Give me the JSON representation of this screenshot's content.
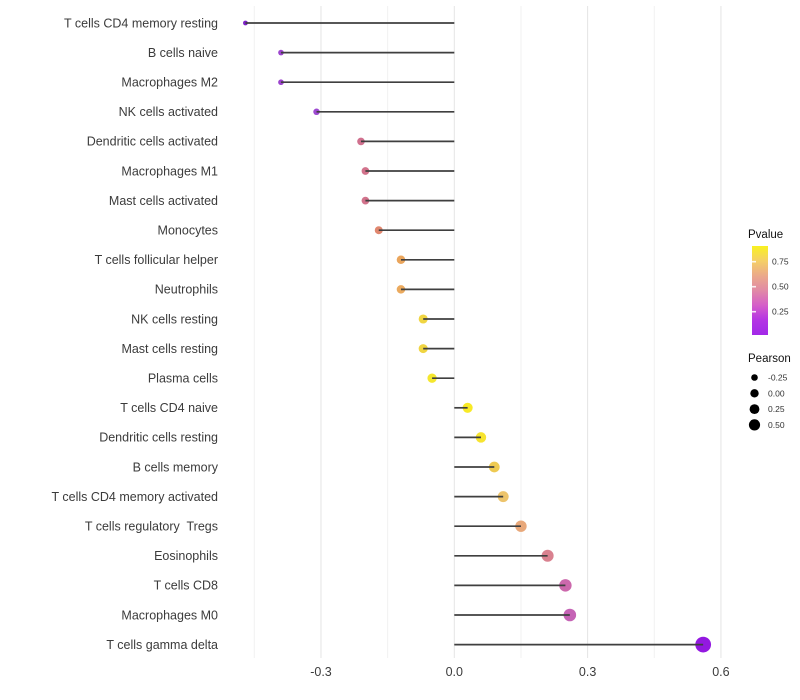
{
  "chart_data": {
    "type": "scatter",
    "subtype": "horizontal-lollipop",
    "title": "",
    "xlabel": "",
    "ylabel": "",
    "xlim": [
      -0.49,
      0.66
    ],
    "grid": "vertical-only",
    "x_major_ticks": [
      -0.3,
      0.0,
      0.3,
      0.6
    ],
    "x_major_tick_labels": [
      "-0.3",
      "0.0",
      "0.3",
      "0.6"
    ],
    "x_minor_gridlines": [
      -0.45,
      -0.15,
      0.15,
      0.45
    ],
    "points": [
      {
        "label": "T cells CD4 memory resting",
        "pearson": -0.47,
        "color": "#7e22c8"
      },
      {
        "label": "B cells naive",
        "pearson": -0.39,
        "color": "#9d45cf"
      },
      {
        "label": "Macrophages M2",
        "pearson": -0.39,
        "color": "#9c43ce"
      },
      {
        "label": "NK cells activated",
        "pearson": -0.31,
        "color": "#9e4ad1"
      },
      {
        "label": "Dendritic cells activated",
        "pearson": -0.21,
        "color": "#d0708e"
      },
      {
        "label": "Macrophages M1",
        "pearson": -0.2,
        "color": "#d2738c"
      },
      {
        "label": "Mast cells activated",
        "pearson": -0.2,
        "color": "#d2738c"
      },
      {
        "label": "Monocytes",
        "pearson": -0.17,
        "color": "#e0876f"
      },
      {
        "label": "T cells follicular helper",
        "pearson": -0.12,
        "color": "#eaa55c"
      },
      {
        "label": "Neutrophils",
        "pearson": -0.12,
        "color": "#ebaa5e"
      },
      {
        "label": "NK cells resting",
        "pearson": -0.07,
        "color": "#f0d542"
      },
      {
        "label": "Mast cells resting",
        "pearson": -0.07,
        "color": "#f0d542"
      },
      {
        "label": "Plasma cells",
        "pearson": -0.05,
        "color": "#f5e72e"
      },
      {
        "label": "T cells CD4 naive",
        "pearson": 0.03,
        "color": "#f8ea26"
      },
      {
        "label": "Dendritic cells resting",
        "pearson": 0.06,
        "color": "#f7e42f"
      },
      {
        "label": "B cells memory",
        "pearson": 0.09,
        "color": "#eeca52"
      },
      {
        "label": "T cells CD4 memory activated",
        "pearson": 0.11,
        "color": "#edc46c"
      },
      {
        "label": "T cells regulatory  Tregs",
        "pearson": 0.15,
        "color": "#e8a87a"
      },
      {
        "label": "Eosinophils",
        "pearson": 0.21,
        "color": "#d9818f"
      },
      {
        "label": "T cells CD8",
        "pearson": 0.25,
        "color": "#cc68ac"
      },
      {
        "label": "Macrophages M0",
        "pearson": 0.26,
        "color": "#c563b5"
      },
      {
        "label": "T cells gamma delta",
        "pearson": 0.56,
        "color": "#9318e0"
      }
    ],
    "legends": {
      "pvalue": {
        "title": "Pvalue",
        "tick_labels": [
          "0.75",
          "0.50",
          "0.25"
        ],
        "gradient_stops_top_to_bottom": [
          "#f9f120",
          "#f5cf66",
          "#eba98a",
          "#e18aa6",
          "#d55ec9",
          "#b434e4",
          "#a228e8"
        ]
      },
      "pearson": {
        "title": "Pearson",
        "items": [
          {
            "label": "-0.25",
            "radius": 3.3
          },
          {
            "label": "0.00",
            "radius": 4.2
          },
          {
            "label": "0.25",
            "radius": 4.9
          },
          {
            "label": "0.50",
            "radius": 5.6
          }
        ],
        "dot_color": "#000000"
      }
    },
    "style_colors": {
      "major_gridline": "#e4e4e4",
      "minor_gridline": "#f1f1f1",
      "stem": "#3f3f3f",
      "background": "#ffffff"
    }
  }
}
